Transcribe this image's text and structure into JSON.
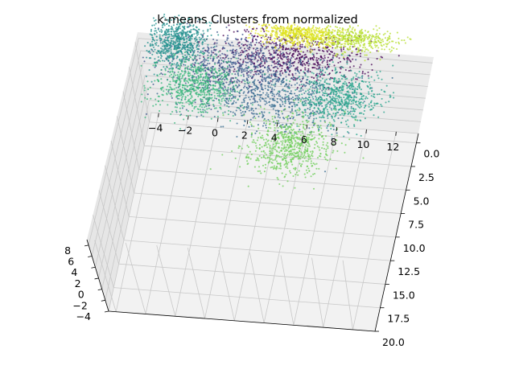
{
  "chart_data": {
    "type": "scatter",
    "projection": "3d",
    "title": "k-means Clusters from normalized",
    "xlabel": "",
    "ylabel": "",
    "zlabel": "",
    "grid": true,
    "legend": "none",
    "xlim": [
      -4.5,
      13.5
    ],
    "ylim": [
      -1.0,
      20.0
    ],
    "zlim": [
      -4.0,
      9.0
    ],
    "x_ticks": [
      "−4",
      "−2",
      "0",
      "2",
      "4",
      "6",
      "8",
      "10",
      "12"
    ],
    "y_ticks": [
      "0.0",
      "2.5",
      "5.0",
      "7.5",
      "10.0",
      "12.5",
      "15.0",
      "17.5",
      "20.0"
    ],
    "z_ticks": [
      "−4",
      "−2",
      "0",
      "2",
      "4",
      "6",
      "8"
    ],
    "series": [
      {
        "color": "#440154",
        "center": {
          "x": 5.5,
          "y": 2.0
        },
        "spread": {
          "x": 4.5,
          "y": 2.4
        }
      },
      {
        "color": "#3b528b",
        "center": {
          "x": 1.5,
          "y": 3.5
        },
        "spread": {
          "x": 4.5,
          "y": 3.0
        }
      },
      {
        "color": "#31688e",
        "center": {
          "x": 4.5,
          "y": 6.5
        },
        "spread": {
          "x": 4.5,
          "y": 3.0
        }
      },
      {
        "color": "#21908d",
        "center": {
          "x": -2.5,
          "y": 1.5
        },
        "spread": {
          "x": 1.8,
          "y": 2.4
        }
      },
      {
        "color": "#26a38b",
        "center": {
          "x": 9.0,
          "y": 6.0
        },
        "spread": {
          "x": 2.6,
          "y": 2.6
        }
      },
      {
        "color": "#35b779",
        "center": {
          "x": -0.5,
          "y": 6.0
        },
        "spread": {
          "x": 2.6,
          "y": 2.6
        }
      },
      {
        "color": "#6ece58",
        "center": {
          "x": 6.5,
          "y": 11.5
        },
        "spread": {
          "x": 2.6,
          "y": 2.8
        }
      },
      {
        "color": "#b5de2b",
        "center": {
          "x": 9.0,
          "y": -0.5
        },
        "spread": {
          "x": 2.8,
          "y": 1.4
        }
      },
      {
        "color": "#e0e320",
        "center": {
          "x": 5.5,
          "y": -0.5
        },
        "spread": {
          "x": 2.4,
          "y": 1.2
        }
      }
    ]
  }
}
